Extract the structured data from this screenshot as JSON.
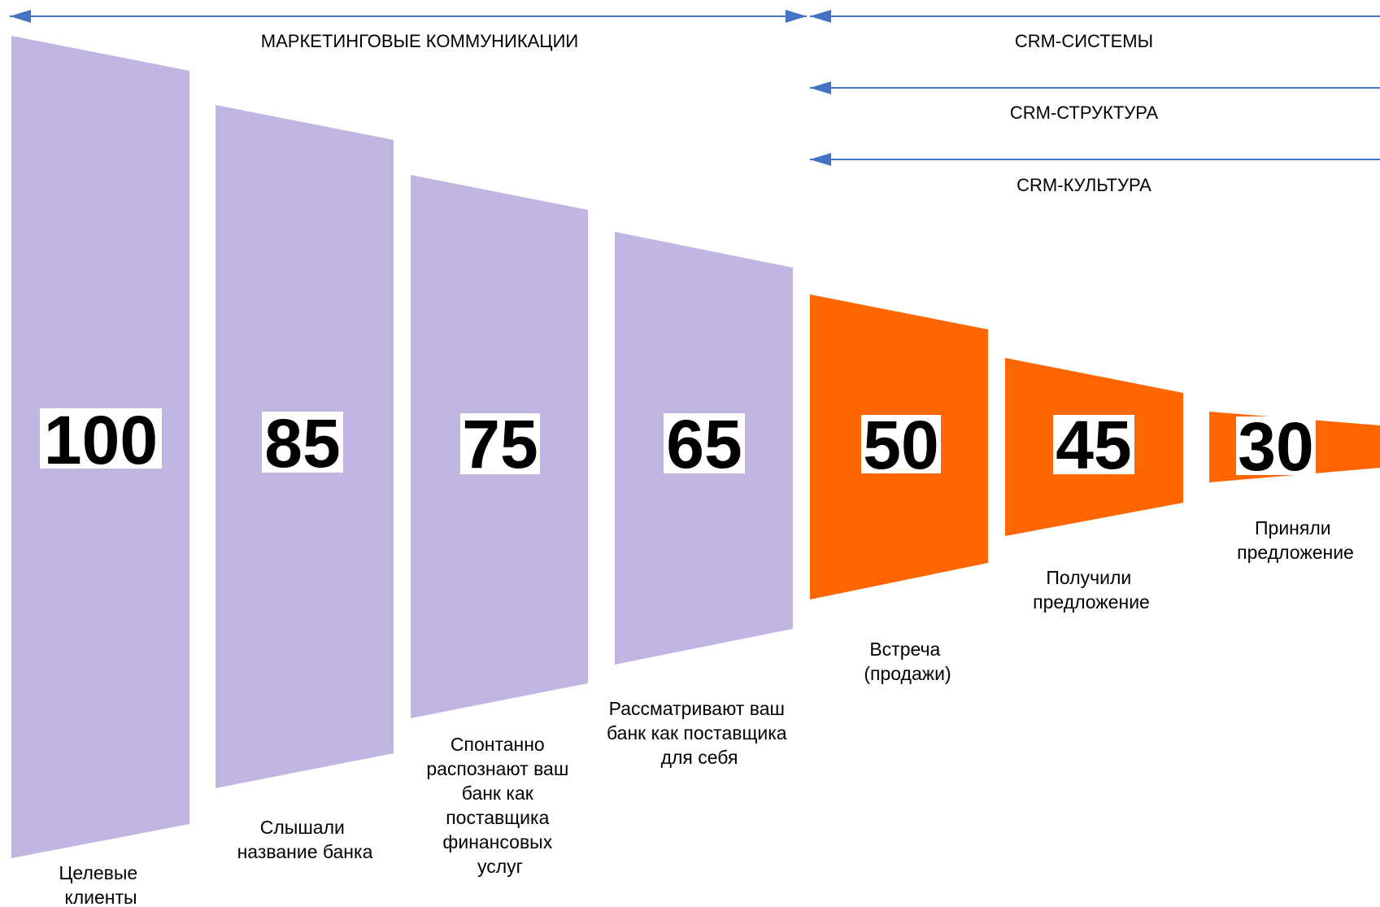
{
  "headers": {
    "marketing": "МАРКЕТИНГОВЫЕ КОММУНИКАЦИИ",
    "crm_systems": "CRM-СИСТЕМЫ",
    "crm_structure": "CRM-СТРУКТУРА",
    "crm_culture": "CRM-КУЛЬТУРА"
  },
  "colors": {
    "marketing_stage": "#c1b5e2",
    "crm_stage": "#ff6600",
    "arrow": "#4472c4",
    "number_box": "#ffffff"
  },
  "stages": [
    {
      "value": "100",
      "label_lines": [
        "Целевые",
        "клиенты"
      ],
      "group": "marketing"
    },
    {
      "value": "85",
      "label_lines": [
        "Слышали",
        "название банка"
      ],
      "group": "marketing"
    },
    {
      "value": "75",
      "label_lines": [
        "Спонтанно",
        "распознают ваш",
        "банк как",
        "поставщика",
        "финансовых",
        "услуг"
      ],
      "group": "marketing"
    },
    {
      "value": "65",
      "label_lines": [
        "Рассматривают ваш",
        "банк как поставщика",
        "для себя"
      ],
      "group": "marketing"
    },
    {
      "value": "50",
      "label_lines": [
        "Встреча",
        "(продажи)"
      ],
      "group": "crm"
    },
    {
      "value": "45",
      "label_lines": [
        "Получили",
        "предложение"
      ],
      "group": "crm"
    },
    {
      "value": "30",
      "label_lines": [
        "Приняли",
        "предложение"
      ],
      "group": "crm"
    }
  ]
}
